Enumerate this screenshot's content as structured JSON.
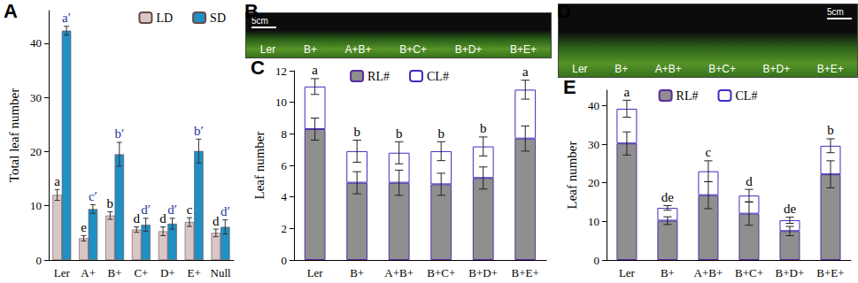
{
  "chart_data": [
    {
      "panel": "A",
      "type": "bar",
      "y_label": "Total leaf number",
      "categories": [
        "Ler",
        "A+",
        "B+",
        "C+",
        "D+",
        "E+",
        "Null"
      ],
      "series": [
        {
          "name": "LD",
          "color": "#d8c7c7",
          "values": [
            12,
            4,
            8.2,
            5.6,
            5.3,
            7,
            5
          ],
          "errors": [
            1,
            0.5,
            0.7,
            0.5,
            0.8,
            0.8,
            0.7
          ],
          "letters": [
            "a",
            "e",
            "b",
            "d",
            "d",
            "c",
            "d"
          ]
        },
        {
          "name": "SD",
          "color": "#1f8fc4",
          "values": [
            42.3,
            9.4,
            19.5,
            6.5,
            6.7,
            20.1,
            6.1
          ],
          "errors": [
            0.8,
            0.8,
            2.2,
            1.2,
            1,
            2.2,
            1.3
          ],
          "letters": [
            "a′",
            "c′",
            "b′",
            "d′",
            "d′",
            "b′",
            "d′"
          ]
        }
      ],
      "ylim": [
        0,
        46
      ],
      "yticks": [
        0,
        10,
        20,
        30,
        40
      ],
      "grid": false,
      "legend": "top-right"
    },
    {
      "panel": "C",
      "type": "bar",
      "stacked": true,
      "y_label": "Leaf number",
      "categories": [
        "Ler",
        "B+",
        "A+B+",
        "B+C+",
        "B+D+",
        "B+E+"
      ],
      "series": [
        {
          "name": "RL#",
          "color": "#8f8f8f",
          "values": [
            8.3,
            4.9,
            4.9,
            4.8,
            5.2,
            7.7
          ],
          "errors": [
            0.7,
            0.7,
            0.8,
            0.7,
            0.7,
            0.8
          ]
        },
        {
          "name": "CL#",
          "color": "#ffffff",
          "values": [
            2.7,
            2.0,
            1.9,
            2.1,
            2.0,
            3.1
          ],
          "errors": [
            0.5,
            0.7,
            0.7,
            0.6,
            0.6,
            0.6
          ],
          "letters": [
            "a",
            "b",
            "b",
            "b",
            "b",
            "a"
          ]
        }
      ],
      "ylim": [
        0,
        12
      ],
      "yticks": [
        0,
        2,
        4,
        6,
        8,
        10,
        12
      ],
      "grid": false,
      "legend": "top"
    },
    {
      "panel": "E",
      "type": "bar",
      "stacked": true,
      "y_label": "Leaf number",
      "categories": [
        "Ler",
        "B+",
        "A+B+",
        "B+C+",
        "B+D+",
        "B+E+"
      ],
      "series": [
        {
          "name": "RL#",
          "color": "#8f8f8f",
          "values": [
            30.2,
            10.2,
            16.8,
            12,
            7.5,
            22.2
          ],
          "errors": [
            3,
            1,
            3.5,
            3,
            1.2,
            3.5
          ]
        },
        {
          "name": "CL#",
          "color": "#ffffff",
          "values": [
            9,
            3.3,
            6.2,
            4.7,
            2.8,
            7.4
          ],
          "errors": [
            2.2,
            0.6,
            2.7,
            1.6,
            0.8,
            1.8
          ],
          "letters": [
            "a",
            "de",
            "c",
            "d",
            "de",
            "b"
          ]
        }
      ],
      "ylim": [
        0,
        44
      ],
      "yticks": [
        0,
        10,
        20,
        30,
        40
      ],
      "grid": false,
      "legend": "top"
    }
  ],
  "photos": [
    {
      "panel": "B",
      "scale": "5cm",
      "labels": [
        "Ler",
        "B+",
        "A+B+",
        "B+C+",
        "B+D+",
        "B+E+"
      ]
    },
    {
      "panel": "D",
      "scale": "5cm",
      "labels": [
        "Ler",
        "B+",
        "A+B+",
        "B+C+",
        "B+D+",
        "B+E+"
      ]
    }
  ]
}
